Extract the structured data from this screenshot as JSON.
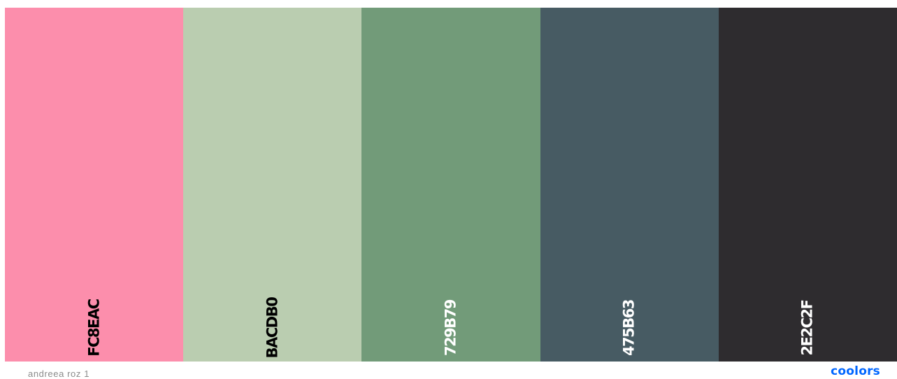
{
  "palette": {
    "name": "andreea roz 1",
    "swatches": [
      {
        "code": "FC8EAC",
        "color": "#FC8EAC",
        "text_color": "#000000"
      },
      {
        "code": "BACDB0",
        "color": "#BACDB0",
        "text_color": "#000000"
      },
      {
        "code": "729B79",
        "color": "#729B79",
        "text_color": "#ffffff"
      },
      {
        "code": "475B63",
        "color": "#475B63",
        "text_color": "#ffffff"
      },
      {
        "code": "2E2C2F",
        "color": "#2E2C2F",
        "text_color": "#ffffff"
      }
    ]
  },
  "brand": {
    "logo": "coolors",
    "color": "#0066FF"
  }
}
